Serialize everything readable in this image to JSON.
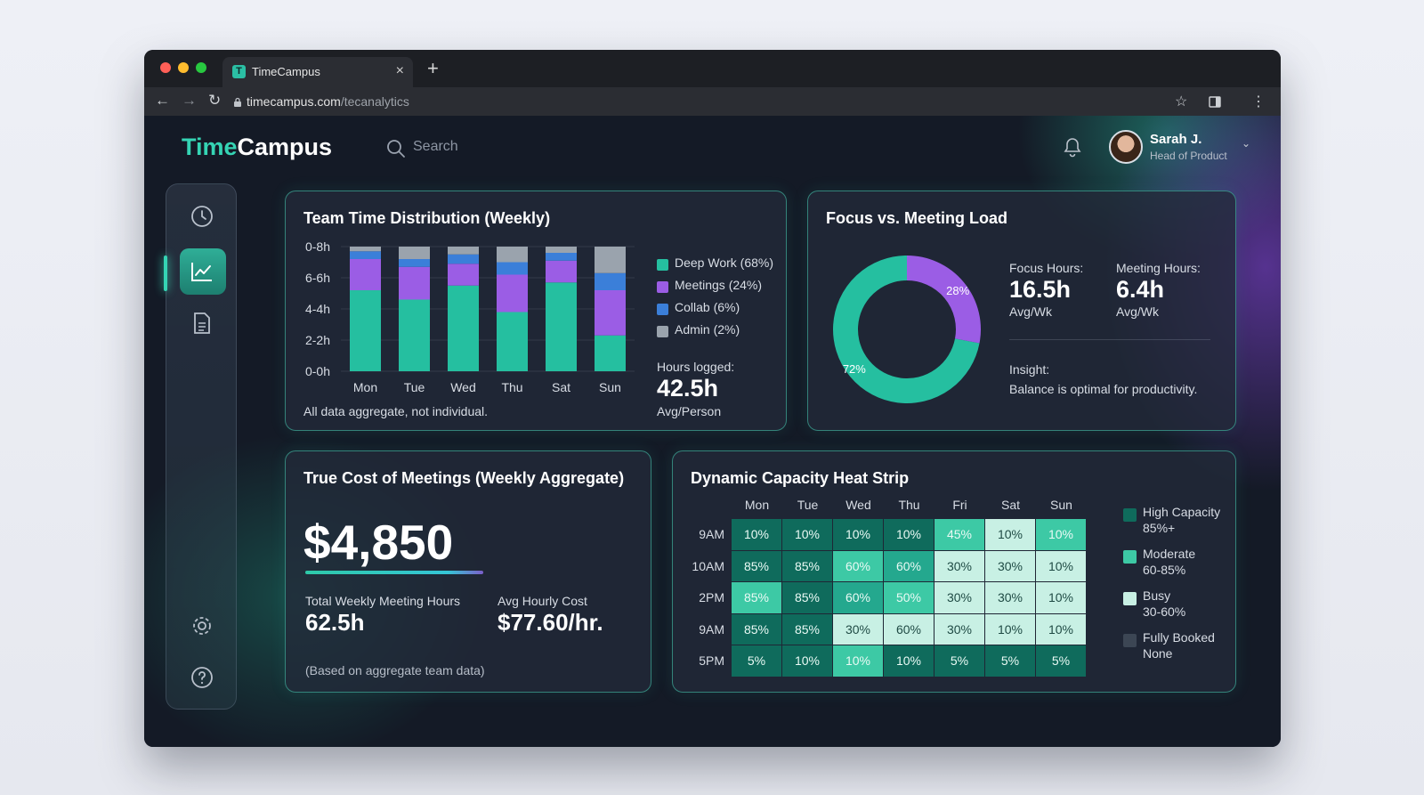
{
  "browser": {
    "tab_title": "TimeCampus",
    "tab_icon": "T",
    "url_host": "timecampus.com",
    "url_path": "/tecanalytics",
    "traffic_lights": [
      "#ff5f57",
      "#febc2e",
      "#28c840"
    ]
  },
  "header": {
    "logo_part1": "Time",
    "logo_part2": "Campus",
    "search_placeholder": "Search",
    "user_name": "Sarah J.",
    "user_role": "Head of Product"
  },
  "sidebar": {
    "items": [
      "clock-icon",
      "analytics-chart-icon",
      "document-icon",
      "settings-icon",
      "help-icon"
    ],
    "active_index": 1
  },
  "colors": {
    "accent": "#35d4b4",
    "deep_work": "#25bfa0",
    "meetings": "#9b5de5",
    "collab": "#3b7fd9",
    "admin": "#9aa3ad"
  },
  "distribution": {
    "title": "Team Time Distribution (Weekly)",
    "legend": [
      "Deep Work (68%)",
      "Meetings (24%)",
      "Collab (6%)",
      "Admin (2%)"
    ],
    "hours_label": "Hours logged:",
    "hours_value": "42.5h",
    "hours_unit": "Avg/Person",
    "footnote": "All data aggregate, not individual.",
    "chart_data": {
      "type": "bar",
      "stacked": true,
      "categories": [
        "Mon",
        "Tue",
        "Wed",
        "Thu",
        "Sat",
        "Sun"
      ],
      "y_tick_labels": [
        "0-0h",
        "2-2h",
        "4-4h",
        "6-6h",
        "0-8h"
      ],
      "ylim": [
        0,
        8
      ],
      "grid": true,
      "legend_position": "right",
      "series": [
        {
          "name": "Deep Work (68%)",
          "values": [
            5.2,
            4.6,
            5.5,
            3.8,
            5.7,
            2.3
          ]
        },
        {
          "name": "Meetings (24%)",
          "values": [
            2.0,
            2.1,
            1.4,
            2.4,
            1.4,
            2.9
          ]
        },
        {
          "name": "Collab (6%)",
          "values": [
            0.5,
            0.5,
            0.6,
            0.8,
            0.5,
            1.1
          ]
        },
        {
          "name": "Admin (2%)",
          "values": [
            0.3,
            0.8,
            0.5,
            1.0,
            0.4,
            1.7
          ]
        }
      ]
    }
  },
  "focus": {
    "title": "Focus vs. Meeting Load",
    "focus_label": "Focus Hours:",
    "focus_value": "16.5h",
    "focus_unit": "Avg/Wk",
    "meeting_label": "Meeting Hours:",
    "meeting_value": "6.4h",
    "meeting_unit": "Avg/Wk",
    "insight_label": "Insight:",
    "insight_text": "Balance is optimal for productivity.",
    "chart_data": {
      "type": "pie",
      "donut": true,
      "labels": [
        "72%",
        "28%"
      ],
      "values": [
        72,
        28
      ],
      "colors": [
        "#25bfa0",
        "#9b5de5"
      ]
    }
  },
  "cost": {
    "title": "True Cost of Meetings (Weekly Aggregate)",
    "amount": "$4,850",
    "hours_label": "Total Weekly Meeting Hours",
    "hours_value": "62.5h",
    "rate_label": "Avg Hourly Cost",
    "rate_value": "$77.60/hr.",
    "footnote": "(Based on aggregate team data)"
  },
  "heat": {
    "title": "Dynamic Capacity Heat Strip",
    "legend": [
      {
        "label": "High Capacity",
        "sub": "85%+",
        "color": "#0f6b5c"
      },
      {
        "label": "Moderate",
        "sub": "60-85%",
        "color": "#3dc9a5"
      },
      {
        "label": "Busy",
        "sub": "30-60%",
        "color": "#c8f0e4"
      },
      {
        "label": "Fully Booked",
        "sub": "None",
        "color": "#3c4654"
      }
    ],
    "chart_data": {
      "type": "heatmap",
      "columns": [
        "Mon",
        "Tue",
        "Wed",
        "Thu",
        "Fri",
        "Sat",
        "Sun"
      ],
      "rows": [
        "9AM",
        "10AM",
        "2PM",
        "9AM",
        "5PM"
      ],
      "values": [
        [
          "10%",
          "10%",
          "10%",
          "10%",
          "45%",
          "10%",
          "10%"
        ],
        [
          "85%",
          "85%",
          "60%",
          "60%",
          "30%",
          "30%",
          "10%"
        ],
        [
          "85%",
          "85%",
          "60%",
          "50%",
          "30%",
          "30%",
          "10%"
        ],
        [
          "85%",
          "85%",
          "30%",
          "60%",
          "30%",
          "10%",
          "10%"
        ],
        [
          "5%",
          "10%",
          "10%",
          "10%",
          "5%",
          "5%",
          "5%"
        ]
      ],
      "cell_colors": [
        [
          "#0f6b5c",
          "#0f6b5c",
          "#0f6b5c",
          "#0f6b5c",
          "#3dc9a5",
          "#c8f0e4",
          "#3dc9a5"
        ],
        [
          "#0f6b5c",
          "#0f6b5c",
          "#3dc9a5",
          "#24a88e",
          "#c8f0e4",
          "#c8f0e4",
          "#c8f0e4"
        ],
        [
          "#3dc9a5",
          "#0f6b5c",
          "#24a88e",
          "#3dc9a5",
          "#c8f0e4",
          "#c8f0e4",
          "#c8f0e4"
        ],
        [
          "#0f6b5c",
          "#0f6b5c",
          "#c8f0e4",
          "#c8f0e4",
          "#c8f0e4",
          "#c8f0e4",
          "#c8f0e4"
        ],
        [
          "#0f6b5c",
          "#0f6b5c",
          "#3dc9a5",
          "#0f6b5c",
          "#0f6b5c",
          "#0f6b5c",
          "#0f6b5c"
        ]
      ]
    }
  }
}
